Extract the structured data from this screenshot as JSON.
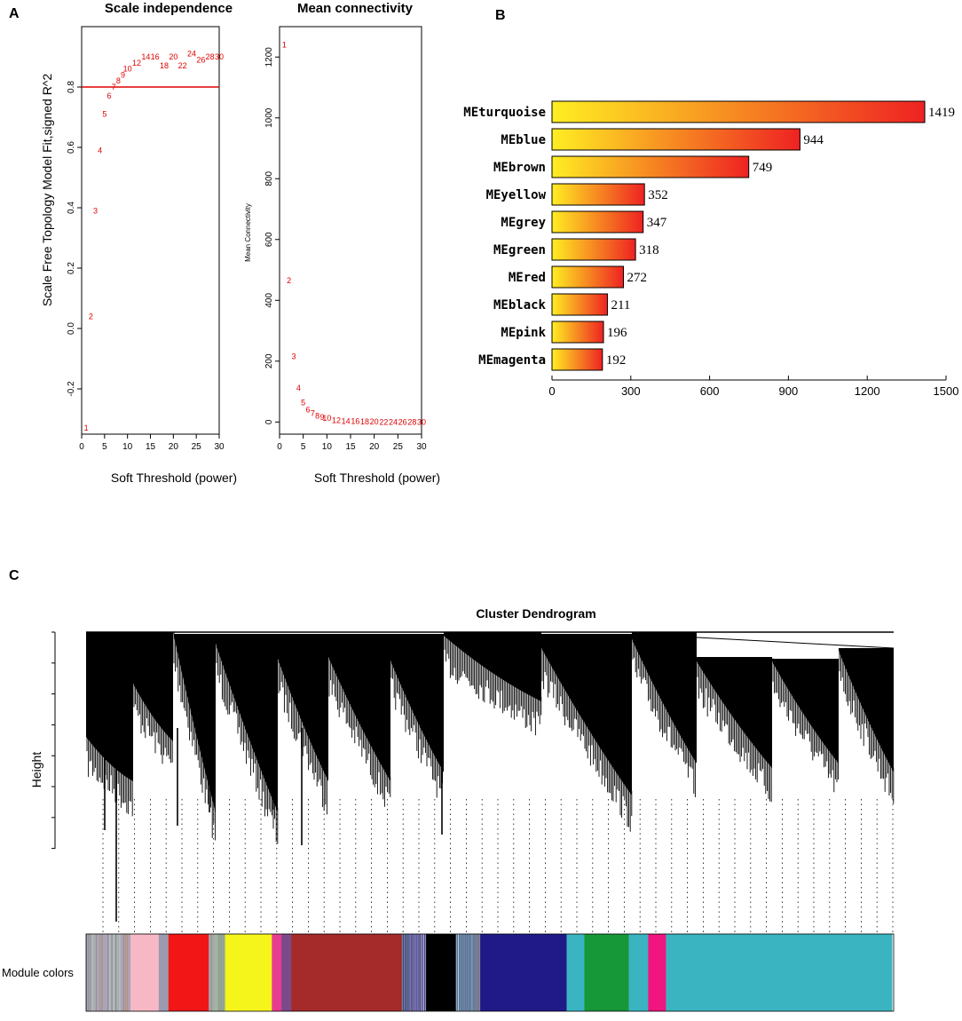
{
  "panels": {
    "a": "A",
    "b": "B",
    "c": "C"
  },
  "chart_data": [
    {
      "type": "scatter",
      "title": "Scale independence",
      "xlabel": "Soft Threshold (power)",
      "ylabel": "Scale Free Topology Model Fit,signed R^2",
      "xlim": [
        0,
        30
      ],
      "ylim": [
        -0.35,
        1.0
      ],
      "xticks": [
        "0",
        "5",
        "10",
        "15",
        "20",
        "25",
        "30"
      ],
      "yticks": [
        "-0.2",
        "0.0",
        "0.2",
        "0.4",
        "0.6",
        "0.8"
      ],
      "hline": 0.8,
      "hline_color": "#e00000",
      "point_color": "#e00000",
      "points": [
        {
          "label": "1",
          "x": 1,
          "y": -0.33
        },
        {
          "label": "2",
          "x": 2,
          "y": 0.04
        },
        {
          "label": "3",
          "x": 3,
          "y": 0.39
        },
        {
          "label": "4",
          "x": 4,
          "y": 0.59
        },
        {
          "label": "5",
          "x": 5,
          "y": 0.71
        },
        {
          "label": "6",
          "x": 6,
          "y": 0.77
        },
        {
          "label": "7",
          "x": 7,
          "y": 0.8
        },
        {
          "label": "8",
          "x": 8,
          "y": 0.82
        },
        {
          "label": "9",
          "x": 9,
          "y": 0.84
        },
        {
          "label": "10",
          "x": 10,
          "y": 0.86
        },
        {
          "label": "12",
          "x": 12,
          "y": 0.88
        },
        {
          "label": "14",
          "x": 14,
          "y": 0.9
        },
        {
          "label": "16",
          "x": 16,
          "y": 0.9
        },
        {
          "label": "18",
          "x": 18,
          "y": 0.87
        },
        {
          "label": "20",
          "x": 20,
          "y": 0.9
        },
        {
          "label": "22",
          "x": 22,
          "y": 0.87
        },
        {
          "label": "24",
          "x": 24,
          "y": 0.91
        },
        {
          "label": "26",
          "x": 26,
          "y": 0.89
        },
        {
          "label": "28",
          "x": 28,
          "y": 0.9
        },
        {
          "label": "30",
          "x": 30,
          "y": 0.9
        }
      ]
    },
    {
      "type": "scatter",
      "title": "Mean connectivity",
      "xlabel": "Soft Threshold (power)",
      "ylabel": "Mean Connectivity",
      "xlim": [
        0,
        30
      ],
      "ylim": [
        -40,
        1300
      ],
      "xticks": [
        "0",
        "5",
        "10",
        "15",
        "20",
        "25",
        "30"
      ],
      "yticks": [
        "0",
        "200",
        "400",
        "600",
        "800",
        "1000",
        "1200"
      ],
      "point_color": "#e00000",
      "points": [
        {
          "label": "1",
          "x": 1,
          "y": 1240
        },
        {
          "label": "2",
          "x": 2,
          "y": 465
        },
        {
          "label": "3",
          "x": 3,
          "y": 215
        },
        {
          "label": "4",
          "x": 4,
          "y": 112
        },
        {
          "label": "5",
          "x": 5,
          "y": 64
        },
        {
          "label": "6",
          "x": 6,
          "y": 40
        },
        {
          "label": "7",
          "x": 7,
          "y": 28
        },
        {
          "label": "8",
          "x": 8,
          "y": 20
        },
        {
          "label": "9",
          "x": 9,
          "y": 16
        },
        {
          "label": "10",
          "x": 10,
          "y": 12
        },
        {
          "label": "12",
          "x": 12,
          "y": 5
        },
        {
          "label": "14",
          "x": 14,
          "y": 3
        },
        {
          "label": "16",
          "x": 16,
          "y": 2
        },
        {
          "label": "18",
          "x": 18,
          "y": 1
        },
        {
          "label": "20",
          "x": 20,
          "y": 1
        },
        {
          "label": "22",
          "x": 22,
          "y": 0
        },
        {
          "label": "24",
          "x": 24,
          "y": 0
        },
        {
          "label": "26",
          "x": 26,
          "y": 0
        },
        {
          "label": "28",
          "x": 28,
          "y": 0
        },
        {
          "label": "30",
          "x": 30,
          "y": 0
        }
      ]
    },
    {
      "type": "bar",
      "orientation": "horizontal",
      "title": "",
      "xlim": [
        0,
        1500
      ],
      "xticks": [
        "0",
        "300",
        "600",
        "900",
        "1200",
        "1500"
      ],
      "gradient": [
        "#ffee22",
        "#ee2222"
      ],
      "categories": [
        "MEturquoise",
        "MEblue",
        "MEbrown",
        "MEyellow",
        "MEgrey",
        "MEgreen",
        "MEred",
        "MEblack",
        "MEpink",
        "MEmagenta"
      ],
      "values": [
        1419,
        944,
        749,
        352,
        347,
        318,
        272,
        211,
        196,
        192
      ],
      "value_labels": [
        "1419",
        "944",
        "749",
        "352",
        "347",
        "318",
        "272",
        "211",
        "196",
        "192"
      ]
    },
    {
      "type": "dendrogram",
      "title": "Cluster Dendrogram",
      "ylabel": "Height",
      "xlabel": "",
      "color_bar_label": "Module colors",
      "module_segments": [
        {
          "color": "#a8a8b0",
          "fraction": 0.055
        },
        {
          "color": "#f5b8c4",
          "fraction": 0.035
        },
        {
          "color": "#9a9ab0",
          "fraction": 0.012
        },
        {
          "color": "#f21616",
          "fraction": 0.05
        },
        {
          "color": "#a0b098",
          "fraction": 0.02
        },
        {
          "color": "#f5f51c",
          "fraction": 0.058
        },
        {
          "color": "#e83c90",
          "fraction": 0.012
        },
        {
          "color": "#7a4a8a",
          "fraction": 0.012
        },
        {
          "color": "#a52a2a",
          "fraction": 0.137
        },
        {
          "color": "#3a3a90",
          "fraction": 0.03
        },
        {
          "color": "#000000",
          "fraction": 0.037
        },
        {
          "color": "#4a70a8",
          "fraction": 0.03
        },
        {
          "color": "#1f1a88",
          "fraction": 0.107
        },
        {
          "color": "#3ab4c0",
          "fraction": 0.022
        },
        {
          "color": "#179838",
          "fraction": 0.055
        },
        {
          "color": "#3ab4c0",
          "fraction": 0.024
        },
        {
          "color": "#f0157f",
          "fraction": 0.022
        },
        {
          "color": "#3ab4c0",
          "fraction": 0.28
        }
      ]
    }
  ]
}
